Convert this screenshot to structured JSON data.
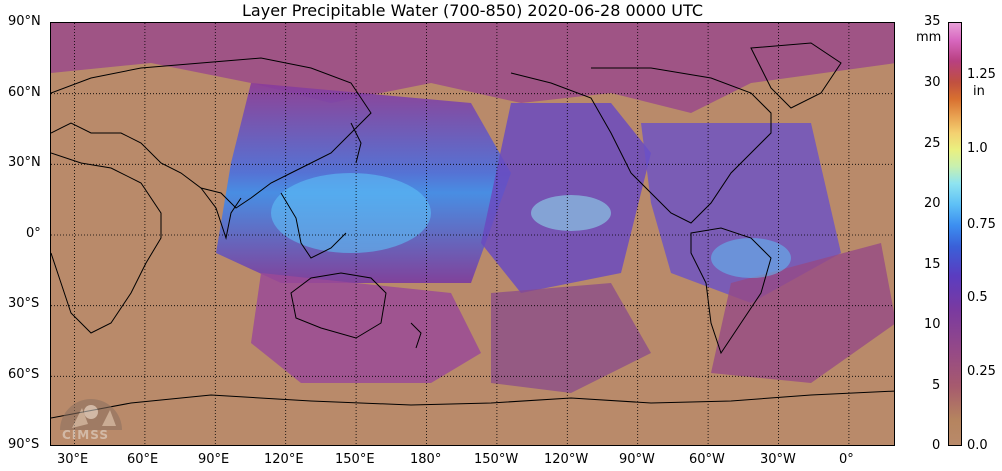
{
  "title": "Layer Precipitable Water (700-850)  2020-06-28 0000 UTC",
  "lat_ticks": [
    "90°N",
    "60°N",
    "30°N",
    "0°",
    "30°S",
    "60°S",
    "90°S"
  ],
  "lon_ticks": [
    "30°E",
    "60°E",
    "90°E",
    "120°E",
    "150°E",
    "180°",
    "150°W",
    "120°W",
    "90°W",
    "60°W",
    "30°W",
    "0°"
  ],
  "colorbar": {
    "mm_unit": "mm",
    "in_unit": "in",
    "mm_ticks": [
      "35",
      "30",
      "25",
      "20",
      "15",
      "10",
      "5",
      "0"
    ],
    "in_ticks": [
      "1.25",
      "1.0",
      "0.75",
      "0.5",
      "0.25",
      "0.0"
    ]
  },
  "logo_text": "CIMSS",
  "colors": {
    "land_background": "#b98a6a",
    "grid": "#000000"
  }
}
